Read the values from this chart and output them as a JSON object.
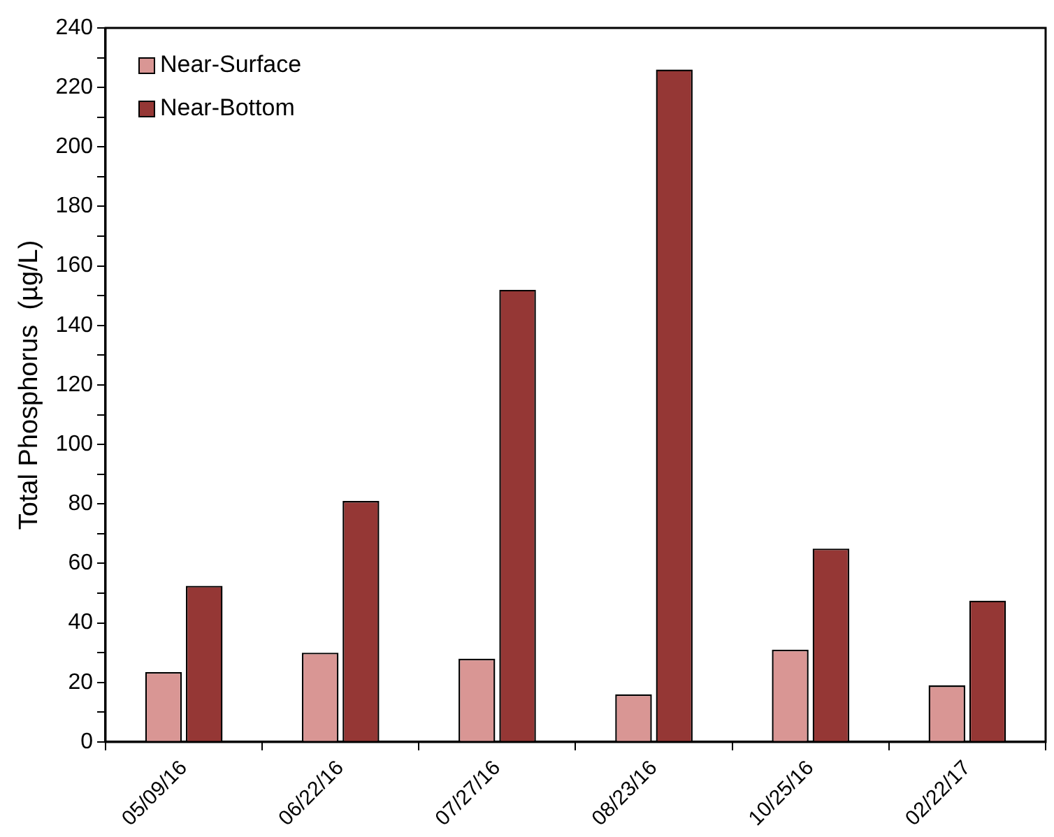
{
  "chart_data": {
    "type": "bar",
    "ylabel": "Total Phosphorus  (µg/L)",
    "categories": [
      "05/09/16",
      "06/22/16",
      "07/27/16",
      "08/23/16",
      "10/25/16",
      "02/22/17"
    ],
    "series": [
      {
        "name": "Near-Surface",
        "color": "#d99694",
        "values": [
          23.5,
          30,
          28,
          16,
          31,
          19
        ]
      },
      {
        "name": "Near-Bottom",
        "color": "#953735",
        "values": [
          52.5,
          81,
          152,
          226,
          65,
          47.5
        ]
      }
    ],
    "ylim": [
      0,
      240
    ],
    "yticks": [
      0,
      {
        "value": 10,
        "label": null
      },
      20,
      {
        "value": 30,
        "label": null
      },
      40,
      {
        "value": 50,
        "label": null
      },
      60,
      {
        "value": 70,
        "label": null
      },
      80,
      {
        "value": 90,
        "label": null
      },
      100,
      {
        "value": 110,
        "label": null
      },
      120,
      {
        "value": 130,
        "label": null
      },
      140,
      {
        "value": 150,
        "label": null
      },
      160,
      {
        "value": 170,
        "label": null
      },
      180,
      {
        "value": 190,
        "label": null
      },
      200,
      {
        "value": 210,
        "label": null
      },
      220,
      {
        "value": 230,
        "label": null
      },
      240
    ],
    "grid": false,
    "legend": "top left"
  }
}
